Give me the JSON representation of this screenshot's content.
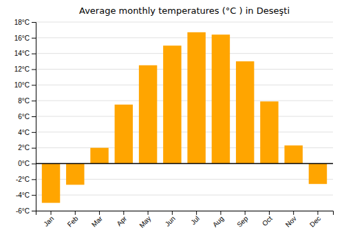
{
  "chart_data": {
    "type": "bar",
    "title": "Average monthly temperatures (°C ) in Deseşti",
    "categories": [
      "Jan",
      "Feb",
      "Mar",
      "Apr",
      "May",
      "Jun",
      "Jul",
      "Aug",
      "Sep",
      "Oct",
      "Nov",
      "Dec"
    ],
    "values": [
      -5.0,
      -2.7,
      2.0,
      7.5,
      12.5,
      15.0,
      16.7,
      16.4,
      13.0,
      7.9,
      2.3,
      -2.6
    ],
    "color": "#FFA500",
    "ylim": [
      -6,
      18
    ],
    "yticks": [
      {
        "value": -6,
        "label": "-6°C"
      },
      {
        "value": -4,
        "label": "-4°C"
      },
      {
        "value": -2,
        "label": "-2°C"
      },
      {
        "value": 0,
        "label": "0°C"
      },
      {
        "value": 2,
        "label": "2°C"
      },
      {
        "value": 4,
        "label": "4°C"
      },
      {
        "value": 6,
        "label": "6°C"
      },
      {
        "value": 8,
        "label": "8°C"
      },
      {
        "value": 10,
        "label": "10°C"
      },
      {
        "value": 12,
        "label": "12°C"
      },
      {
        "value": 14,
        "label": "14°C"
      },
      {
        "value": 16,
        "label": "16°C"
      },
      {
        "value": 18,
        "label": "18°C"
      }
    ],
    "grid": true
  }
}
